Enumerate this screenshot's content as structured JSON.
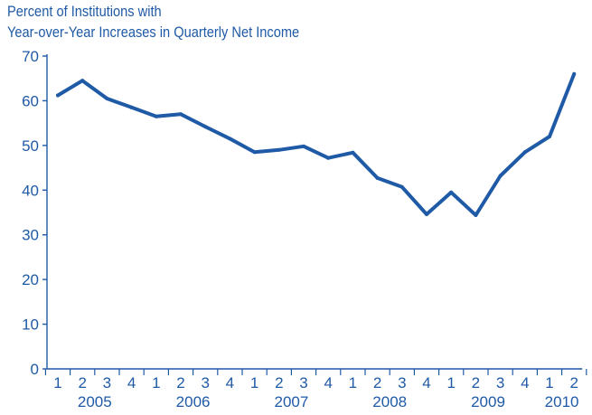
{
  "chart_data": {
    "type": "line",
    "title_line1": "Percent of Institutions with",
    "title_line2": "Year-over-Year Increases in Quarterly Net Income",
    "xlabel": "",
    "ylabel": "",
    "ylim": [
      0,
      70
    ],
    "yticks": [
      0,
      10,
      20,
      30,
      40,
      50,
      60,
      70
    ],
    "quarter_labels": [
      "1",
      "2",
      "3",
      "4",
      "1",
      "2",
      "3",
      "4",
      "1",
      "2",
      "3",
      "4",
      "1",
      "2",
      "3",
      "4",
      "1",
      "2",
      "3",
      "4",
      "1",
      "2"
    ],
    "years": [
      {
        "label": "2005",
        "start": 0,
        "end": 3
      },
      {
        "label": "2006",
        "start": 4,
        "end": 7
      },
      {
        "label": "2007",
        "start": 8,
        "end": 11
      },
      {
        "label": "2008",
        "start": 12,
        "end": 15
      },
      {
        "label": "2009",
        "start": 16,
        "end": 19
      },
      {
        "label": "2010",
        "start": 20,
        "end": 21
      }
    ],
    "series": [
      {
        "values": [
          61.2,
          64.5,
          60.5,
          58.5,
          56.5,
          57.0,
          54.2,
          51.5,
          48.5,
          49.0,
          49.8,
          47.2,
          48.4,
          42.7,
          40.7,
          34.6,
          39.5,
          34.4,
          43.2,
          48.5,
          52.0,
          66.0
        ]
      }
    ],
    "line_color": "#1f5aa6",
    "grid": false,
    "legend": "none"
  }
}
